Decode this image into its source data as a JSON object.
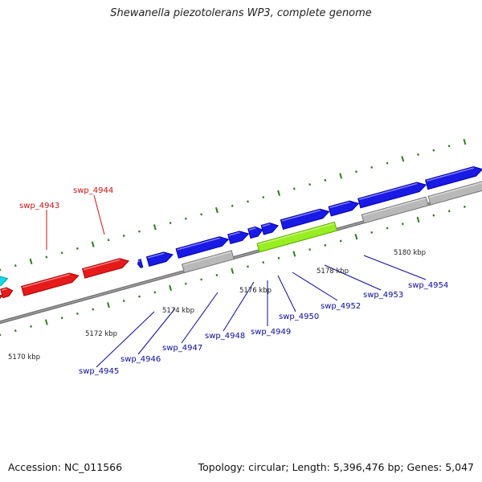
{
  "title": "Shewanella piezotolerans WP3, complete genome",
  "accession": "Accession: NC_011566",
  "topology": "Topology: circular; Length: 5,396,476 bp; Genes: 5,047",
  "colors": {
    "background": "#ffffff",
    "backbone": "#808080",
    "tick": "#2e7d1e",
    "forward_gene": "#1a1ae6",
    "reverse_gene": "#e61a1a",
    "other_gene": "#1ad9e6",
    "rna_gene": "#99ee22",
    "pseudo_gene": "#b8b8b8",
    "label_blue": "#0a0aa0",
    "label_red": "#d01010"
  },
  "scale_labels": [
    "5170 kbp",
    "5172 kbp",
    "5174 kbp",
    "5176 kbp",
    "5178 kbp",
    "5180 kbp"
  ],
  "gene_labels": [
    {
      "text": "swp_4943",
      "color": "red"
    },
    {
      "text": "swp_4944",
      "color": "red"
    },
    {
      "text": "swp_4945",
      "color": "blue"
    },
    {
      "text": "swp_4946",
      "color": "blue"
    },
    {
      "text": "swp_4947",
      "color": "blue"
    },
    {
      "text": "swp_4948",
      "color": "blue"
    },
    {
      "text": "swp_4949",
      "color": "blue"
    },
    {
      "text": "swp_4950",
      "color": "blue"
    },
    {
      "text": "swp_4952",
      "color": "blue"
    },
    {
      "text": "swp_4953",
      "color": "blue"
    },
    {
      "text": "swp_4954",
      "color": "blue"
    }
  ]
}
